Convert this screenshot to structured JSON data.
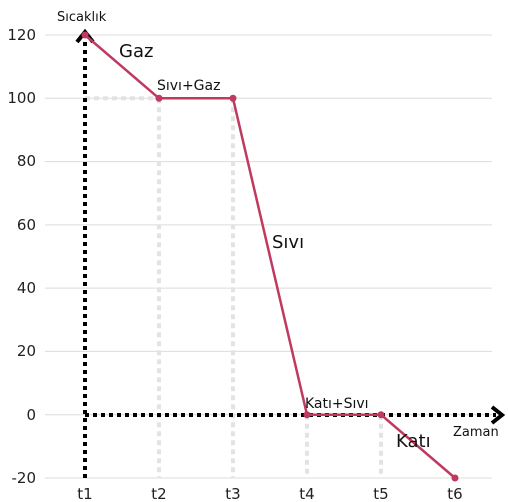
{
  "chart_data": {
    "type": "line",
    "ylabel": "Sıcaklık",
    "xlabel": "Zaman",
    "categories": [
      "t1",
      "t2",
      "t3",
      "t4",
      "t5",
      "t6"
    ],
    "yticks": [
      "120",
      "100",
      "80",
      "60",
      "40",
      "20",
      "0",
      "-20"
    ],
    "ylim": [
      -20,
      120
    ],
    "series": [
      {
        "values": [
          120,
          100,
          100,
          0,
          0,
          -20
        ]
      }
    ],
    "annotations": [
      "Gaz",
      "Sıvı+Gaz",
      "Sıvı",
      "Katı+Sıvı",
      "Katı"
    ],
    "grid": true,
    "line_color": "#c0395f",
    "axis_color": "#000000",
    "guide_color": "#e3e3e3"
  }
}
